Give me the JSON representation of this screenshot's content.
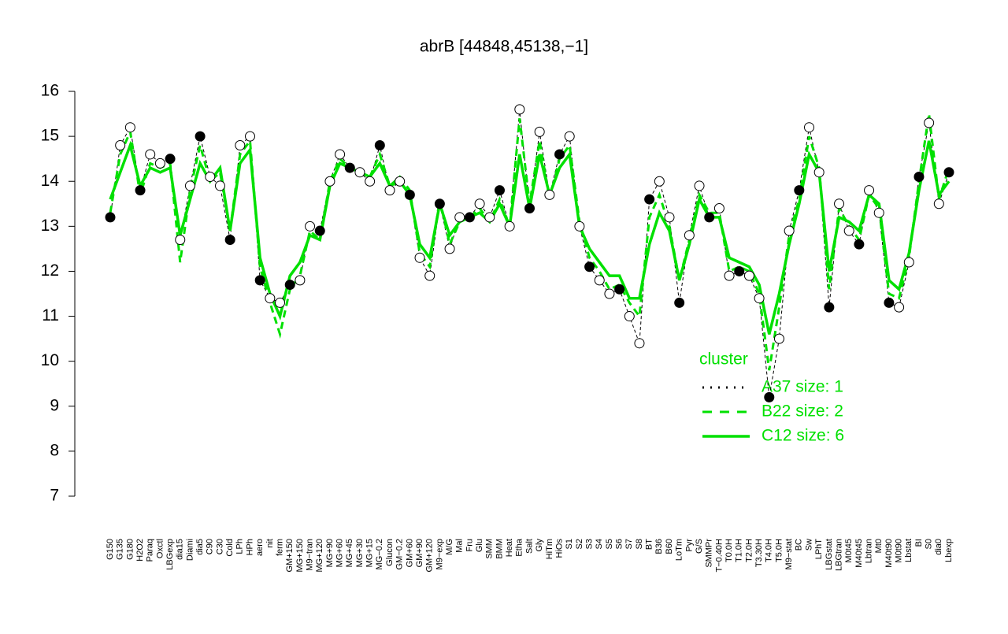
{
  "chart_data": {
    "type": "line",
    "title": "abrB [44848,45138,−1]",
    "categories": [
      "G150",
      "G135",
      "G180",
      "H2O2",
      "Paraq",
      "Oxctl",
      "LBGexp",
      "dia15",
      "Diami",
      "dia5",
      "C90",
      "C30",
      "Cold",
      "LPh",
      "HPh",
      "aero",
      "nit",
      "ferm",
      "GM+150",
      "MG+150",
      "M9−tran",
      "MG+120",
      "MG+90",
      "MG+60",
      "MG+45",
      "MG+30",
      "MG+15",
      "MG−0.2",
      "Glucon",
      "GM−0.2",
      "GM+60",
      "GM+90",
      "GM+120",
      "M9−exp",
      "M/G",
      "Mal",
      "Fru",
      "Glu",
      "SMM",
      "BMM",
      "Heat",
      "Etha",
      "Salt",
      "Gly",
      "HiTm",
      "HiOs",
      "S1",
      "S2",
      "S3",
      "S4",
      "S5",
      "S6",
      "S7",
      "S8",
      "BT",
      "B36",
      "B60",
      "LoTm",
      "Pyr",
      "G/S",
      "SMMPr",
      "T−0.40H",
      "T0.0H",
      "T1.0H",
      "T2.0H",
      "T3.30H",
      "T4.0H",
      "T5.0H",
      "M9−stat",
      "BC",
      "Sw",
      "LPhT",
      "LBGstat",
      "LBGtran",
      "M0t45",
      "M40t45",
      "Lbtran",
      "Mt0",
      "M40t90",
      "M0t90",
      "Lbstat",
      "BI",
      "S0",
      "dia0",
      "Lbexp"
    ],
    "series": [
      {
        "name": "A37 size: 1",
        "color": "#000000",
        "style": "points",
        "values": [
          13.2,
          14.8,
          15.2,
          13.8,
          14.6,
          14.4,
          14.5,
          12.7,
          13.9,
          15.0,
          14.1,
          13.9,
          12.7,
          14.8,
          15.0,
          11.8,
          11.4,
          11.3,
          11.7,
          11.8,
          13.0,
          12.9,
          14.0,
          14.6,
          14.3,
          14.2,
          14.0,
          14.8,
          13.8,
          14.0,
          13.7,
          12.3,
          11.9,
          13.5,
          12.5,
          13.2,
          13.2,
          13.5,
          13.2,
          13.8,
          13.0,
          15.6,
          13.4,
          15.1,
          13.7,
          14.6,
          15.0,
          13.0,
          12.1,
          11.8,
          11.5,
          11.6,
          11.0,
          10.4,
          13.6,
          14.0,
          13.2,
          11.3,
          12.8,
          13.9,
          13.2,
          13.4,
          11.9,
          12.0,
          11.9,
          11.4,
          9.2,
          10.5,
          12.9,
          13.8,
          15.2,
          14.2,
          11.2,
          13.5,
          12.9,
          12.6,
          13.8,
          13.3,
          11.3,
          11.2,
          12.2,
          14.1,
          15.3,
          13.5,
          14.2
        ]
      },
      {
        "name": "B22 size: 2",
        "color": "#00e000",
        "style": "dashed",
        "values": [
          13.3,
          14.6,
          15.1,
          13.7,
          14.4,
          14.3,
          14.4,
          12.2,
          13.8,
          14.8,
          14.0,
          14.2,
          12.9,
          14.6,
          14.9,
          12.1,
          11.3,
          10.6,
          11.6,
          11.9,
          12.9,
          12.7,
          14.0,
          14.5,
          14.3,
          14.2,
          14.1,
          14.6,
          13.9,
          14.1,
          13.8,
          12.4,
          12.1,
          13.6,
          12.6,
          13.1,
          13.2,
          13.4,
          13.1,
          13.6,
          13.0,
          15.4,
          13.5,
          14.9,
          13.6,
          14.5,
          14.8,
          13.1,
          12.3,
          12.0,
          11.6,
          11.7,
          11.3,
          11.0,
          13.2,
          13.7,
          13.0,
          11.8,
          12.7,
          13.7,
          13.3,
          13.3,
          12.0,
          12.1,
          12.0,
          11.5,
          9.8,
          11.2,
          12.8,
          13.6,
          15.0,
          14.3,
          11.6,
          13.4,
          13.0,
          12.7,
          13.7,
          13.4,
          11.5,
          11.4,
          12.3,
          14.0,
          15.5,
          13.6,
          14.3
        ]
      },
      {
        "name": "C12 size: 6",
        "color": "#00e000",
        "style": "solid",
        "values": [
          13.6,
          14.2,
          14.8,
          13.9,
          14.3,
          14.2,
          14.3,
          12.8,
          13.6,
          14.4,
          14.0,
          14.3,
          12.9,
          14.4,
          14.7,
          12.3,
          11.5,
          11.0,
          11.9,
          12.2,
          12.8,
          12.7,
          13.9,
          14.4,
          14.3,
          14.2,
          14.1,
          14.4,
          13.9,
          14.0,
          13.7,
          12.6,
          12.3,
          13.5,
          12.8,
          13.1,
          13.2,
          13.3,
          13.1,
          13.5,
          13.0,
          14.6,
          13.4,
          14.6,
          13.7,
          14.3,
          14.6,
          13.0,
          12.5,
          12.2,
          11.9,
          11.9,
          11.4,
          11.4,
          12.6,
          13.3,
          12.9,
          11.8,
          12.6,
          13.6,
          13.2,
          13.2,
          12.3,
          12.2,
          12.1,
          11.7,
          10.6,
          11.5,
          12.6,
          13.5,
          14.6,
          14.2,
          12.0,
          13.2,
          13.1,
          12.9,
          13.7,
          13.5,
          11.8,
          11.6,
          12.4,
          13.8,
          14.9,
          13.7,
          14.0
        ]
      }
    ],
    "ylim": [
      7,
      16
    ],
    "yticks": [
      7,
      8,
      9,
      10,
      11,
      12,
      13,
      14,
      15,
      16
    ],
    "legend_title": "cluster",
    "legend": "bottom-right"
  }
}
